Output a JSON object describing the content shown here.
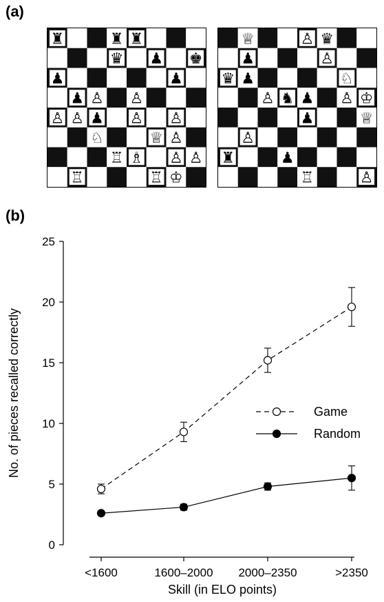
{
  "figure": {
    "panel_a_label": "(a)",
    "panel_b_label": "(b)"
  },
  "boards": [
    {
      "name": "game-position",
      "pieces": [
        {
          "sq": "a8",
          "p": "♜"
        },
        {
          "sq": "d8",
          "p": "♜"
        },
        {
          "sq": "e8",
          "p": "♜"
        },
        {
          "sq": "d7",
          "p": "♛"
        },
        {
          "sq": "f7",
          "p": "♟"
        },
        {
          "sq": "h7",
          "p": "♚"
        },
        {
          "sq": "a6",
          "p": "♟"
        },
        {
          "sq": "g6",
          "p": "♟"
        },
        {
          "sq": "b5",
          "p": "♟"
        },
        {
          "sq": "c5",
          "p": "♙"
        },
        {
          "sq": "e5",
          "p": "♙"
        },
        {
          "sq": "a4",
          "p": "♙"
        },
        {
          "sq": "b4",
          "p": "♙"
        },
        {
          "sq": "c4",
          "p": "♟"
        },
        {
          "sq": "e4",
          "p": "♙"
        },
        {
          "sq": "g4",
          "p": "♙"
        },
        {
          "sq": "c3",
          "p": "♘"
        },
        {
          "sq": "f3",
          "p": "♕"
        },
        {
          "sq": "g3",
          "p": "♙"
        },
        {
          "sq": "d2",
          "p": "♖"
        },
        {
          "sq": "e2",
          "p": "♗"
        },
        {
          "sq": "g2",
          "p": "♙"
        },
        {
          "sq": "h2",
          "p": "♙"
        },
        {
          "sq": "b1",
          "p": "♖"
        },
        {
          "sq": "f1",
          "p": "♖"
        },
        {
          "sq": "g1",
          "p": "♔"
        }
      ]
    },
    {
      "name": "random-position",
      "pieces": [
        {
          "sq": "b8",
          "p": "♕"
        },
        {
          "sq": "e8",
          "p": "♙"
        },
        {
          "sq": "f8",
          "p": "♛"
        },
        {
          "sq": "b7",
          "p": "♟"
        },
        {
          "sq": "f7",
          "p": "♙"
        },
        {
          "sq": "a6",
          "p": "♛"
        },
        {
          "sq": "b6",
          "p": "♟"
        },
        {
          "sq": "g6",
          "p": "♘"
        },
        {
          "sq": "c5",
          "p": "♙"
        },
        {
          "sq": "d5",
          "p": "♞"
        },
        {
          "sq": "e5",
          "p": "♟"
        },
        {
          "sq": "g5",
          "p": "♙"
        },
        {
          "sq": "h5",
          "p": "♔"
        },
        {
          "sq": "e4",
          "p": "♟"
        },
        {
          "sq": "h4",
          "p": "♕"
        },
        {
          "sq": "b3",
          "p": "♙"
        },
        {
          "sq": "a2",
          "p": "♜"
        },
        {
          "sq": "d2",
          "p": "♟"
        },
        {
          "sq": "e1",
          "p": "♖"
        },
        {
          "sq": "h1",
          "p": "♙"
        }
      ]
    }
  ],
  "chart_data": {
    "type": "line",
    "categories": [
      "<1600",
      "1600–2000",
      "2000–2350",
      ">2350"
    ],
    "xlabel": "Skill (in ELO points)",
    "ylabel": "No. of pieces recalled correctly",
    "ylim": [
      0,
      25
    ],
    "yticks": [
      0,
      5,
      10,
      15,
      20,
      25
    ],
    "grid": false,
    "legend_position": "right",
    "series": [
      {
        "name": "Game",
        "values": [
          4.6,
          9.3,
          15.2,
          19.6
        ],
        "errors": [
          0.4,
          0.8,
          1.0,
          1.6
        ],
        "marker": "open-circle",
        "line": "dashed",
        "color": "#000000"
      },
      {
        "name": "Random",
        "values": [
          2.6,
          3.1,
          4.8,
          5.5
        ],
        "errors": [
          0.15,
          0.25,
          0.3,
          1.0
        ],
        "marker": "filled-circle",
        "line": "solid",
        "color": "#000000"
      }
    ]
  }
}
